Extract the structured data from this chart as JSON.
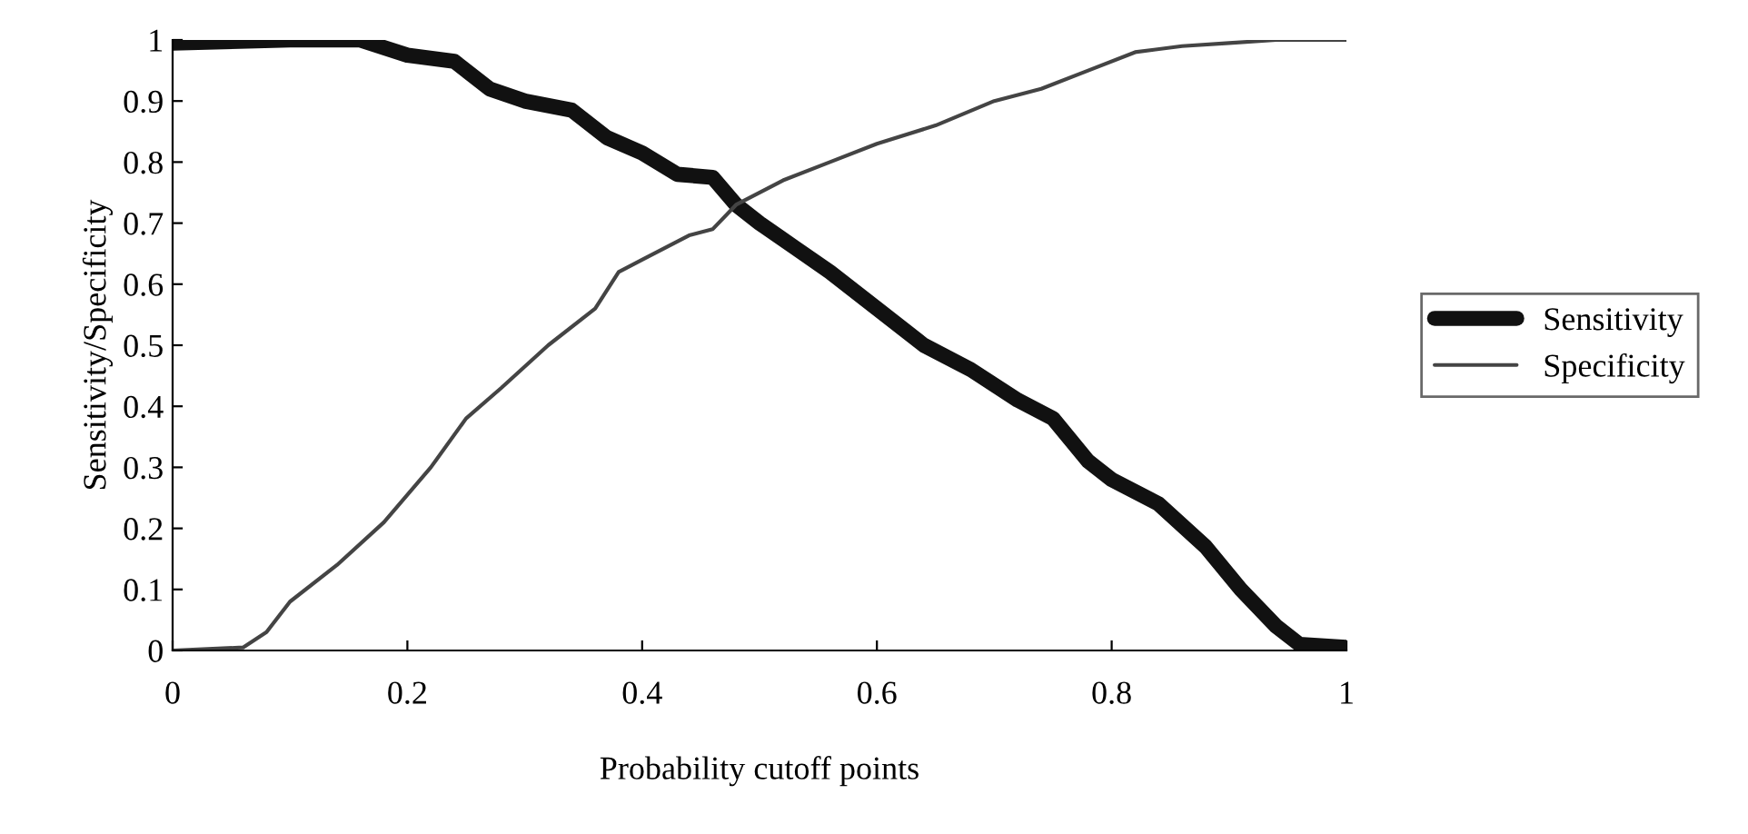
{
  "chart_data": {
    "type": "line",
    "xlabel": "Probability cutoff points",
    "ylabel": "Sensitivity/Specificity",
    "xlim": [
      0,
      1
    ],
    "ylim": [
      0,
      1
    ],
    "xticks": [
      0,
      0.2,
      0.4,
      0.6,
      0.8,
      1
    ],
    "yticks": [
      0,
      0.1,
      0.2,
      0.3,
      0.4,
      0.5,
      0.6,
      0.7,
      0.8,
      0.9,
      1
    ],
    "grid": false,
    "legend": "right",
    "marker": "none",
    "line_style": "solid",
    "series": [
      {
        "name": "Sensitivity",
        "color": "#111111",
        "x": [
          0,
          0.1,
          0.16,
          0.2,
          0.24,
          0.27,
          0.3,
          0.34,
          0.37,
          0.4,
          0.43,
          0.46,
          0.48,
          0.5,
          0.53,
          0.56,
          0.6,
          0.64,
          0.68,
          0.72,
          0.75,
          0.78,
          0.8,
          0.84,
          0.88,
          0.91,
          0.94,
          0.96,
          1
        ],
        "values": [
          0.995,
          1.0,
          1.0,
          0.975,
          0.965,
          0.92,
          0.9,
          0.885,
          0.84,
          0.815,
          0.78,
          0.775,
          0.73,
          0.7,
          0.66,
          0.62,
          0.56,
          0.5,
          0.46,
          0.41,
          0.38,
          0.31,
          0.28,
          0.24,
          0.17,
          0.1,
          0.04,
          0.01,
          0.005
        ]
      },
      {
        "name": "Specificity",
        "color": "#444444",
        "x": [
          0,
          0.06,
          0.08,
          0.1,
          0.14,
          0.18,
          0.22,
          0.25,
          0.28,
          0.32,
          0.36,
          0.38,
          0.4,
          0.44,
          0.46,
          0.48,
          0.52,
          0.56,
          0.6,
          0.65,
          0.7,
          0.74,
          0.78,
          0.82,
          0.86,
          0.9,
          0.94,
          1
        ],
        "values": [
          0,
          0.005,
          0.03,
          0.08,
          0.14,
          0.21,
          0.3,
          0.38,
          0.43,
          0.5,
          0.56,
          0.62,
          0.64,
          0.68,
          0.69,
          0.73,
          0.77,
          0.8,
          0.83,
          0.86,
          0.9,
          0.92,
          0.95,
          0.98,
          0.99,
          0.995,
          1.0,
          1.0
        ]
      }
    ]
  }
}
